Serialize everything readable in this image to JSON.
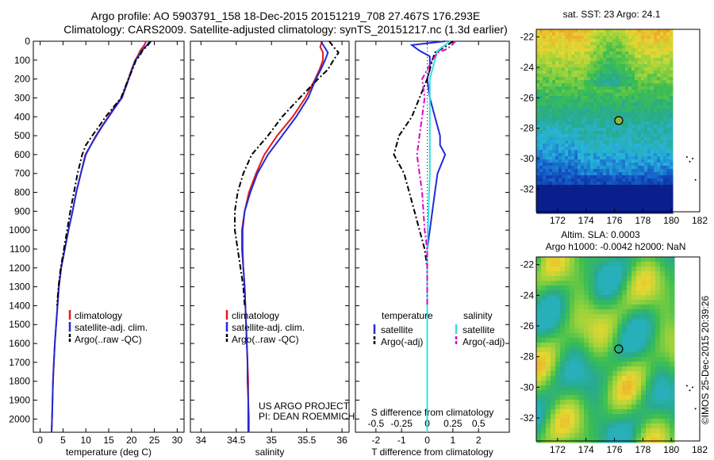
{
  "header": {
    "line1": "Argo profile: AO 5903791_158 18-Dec-2015 20151219_708 27.467S 176.293E",
    "line2": "Climatology: CARS2009. Satellite-adjusted climatology: synTS_20151217.nc (1.3d earlier)"
  },
  "colors": {
    "climatology": "#e41a1c",
    "satellite": "#1f2bd6",
    "argo": "#000000",
    "sal_satellite": "#33e0e0",
    "sal_argo": "#e000c8"
  },
  "chart_data": [
    {
      "type": "line",
      "panel": "temperature",
      "xlabel": "temperature (deg C)",
      "xticks": [
        0,
        5,
        10,
        15,
        20,
        25,
        30
      ],
      "xlim": [
        -1.5,
        31.5
      ],
      "yticks": [
        0,
        100,
        200,
        300,
        400,
        500,
        600,
        700,
        800,
        900,
        1000,
        1100,
        1200,
        1300,
        1400,
        1500,
        1600,
        1700,
        1800,
        1900,
        2000
      ],
      "ylim": [
        2070,
        0
      ],
      "y_inverted": true,
      "legend": {
        "placement": "lower-center",
        "items": [
          "climatology",
          "satellite-adj. clim.",
          "Argo(..raw -QC)"
        ]
      },
      "series": [
        {
          "name": "climatology",
          "style": "solid",
          "color": "#e41a1c",
          "points": [
            [
              23.2,
              0
            ],
            [
              22.8,
              20
            ],
            [
              21.9,
              50
            ],
            [
              21.3,
              80
            ],
            [
              20.8,
              100
            ],
            [
              20.0,
              150
            ],
            [
              19.3,
              200
            ],
            [
              17.8,
              300
            ],
            [
              16.2,
              350
            ],
            [
              14.9,
              400
            ],
            [
              13.5,
              450
            ],
            [
              12.2,
              500
            ],
            [
              11.1,
              550
            ],
            [
              9.9,
              600
            ],
            [
              8.9,
              700
            ],
            [
              7.9,
              800
            ],
            [
              7.1,
              900
            ],
            [
              6.2,
              1000
            ],
            [
              5.4,
              1100
            ],
            [
              4.6,
              1200
            ],
            [
              4.1,
              1300
            ],
            [
              3.8,
              1400
            ],
            [
              3.5,
              1500
            ],
            [
              3.2,
              1600
            ],
            [
              3.0,
              1700
            ],
            [
              2.8,
              1800
            ],
            [
              2.7,
              1900
            ],
            [
              2.6,
              2000
            ],
            [
              2.5,
              2070
            ]
          ]
        },
        {
          "name": "satellite-adj. clim.",
          "style": "solid",
          "color": "#1f2bd6",
          "points": [
            [
              24.0,
              0
            ],
            [
              23.4,
              20
            ],
            [
              22.2,
              50
            ],
            [
              21.5,
              80
            ],
            [
              20.9,
              100
            ],
            [
              20.1,
              150
            ],
            [
              19.4,
              200
            ],
            [
              17.9,
              300
            ],
            [
              16.4,
              350
            ],
            [
              15.0,
              400
            ],
            [
              13.6,
              450
            ],
            [
              12.3,
              500
            ],
            [
              11.1,
              550
            ],
            [
              10.0,
              600
            ],
            [
              8.9,
              700
            ],
            [
              7.9,
              800
            ],
            [
              7.1,
              900
            ],
            [
              6.2,
              1000
            ],
            [
              5.4,
              1100
            ],
            [
              4.6,
              1200
            ],
            [
              4.1,
              1300
            ],
            [
              3.8,
              1400
            ],
            [
              3.5,
              1500
            ],
            [
              3.2,
              1600
            ],
            [
              3.0,
              1700
            ],
            [
              2.8,
              1800
            ],
            [
              2.7,
              1900
            ],
            [
              2.6,
              2000
            ],
            [
              2.5,
              2070
            ]
          ]
        },
        {
          "name": "Argo(..raw -QC)",
          "style": "dash",
          "color": "#000000",
          "points": [
            [
              24.2,
              0
            ],
            [
              23.6,
              20
            ],
            [
              22.4,
              50
            ],
            [
              21.7,
              80
            ],
            [
              21.0,
              100
            ],
            [
              20.2,
              150
            ],
            [
              19.3,
              200
            ],
            [
              17.7,
              300
            ],
            [
              16.0,
              350
            ],
            [
              14.3,
              400
            ],
            [
              12.9,
              450
            ],
            [
              11.4,
              500
            ],
            [
              10.0,
              550
            ],
            [
              9.2,
              600
            ],
            [
              8.2,
              700
            ],
            [
              7.4,
              800
            ],
            [
              6.6,
              900
            ],
            [
              5.9,
              1000
            ],
            [
              5.2,
              1100
            ],
            [
              4.5,
              1200
            ],
            [
              4.0,
              1300
            ],
            [
              3.7,
              1400
            ]
          ]
        }
      ]
    },
    {
      "type": "line",
      "panel": "salinity",
      "xlabel": "salinity",
      "xticks": [
        34,
        34.5,
        35,
        35.5,
        36
      ],
      "xlim": [
        33.85,
        36.1
      ],
      "ylim": [
        2070,
        0
      ],
      "y_inverted": true,
      "legend": {
        "placement": "lower-center",
        "items": [
          "climatology",
          "satellite-adj. clim.",
          "Argo(..raw -QC)"
        ]
      },
      "annotation": [
        "US ARGO PROJECT",
        "PI: DEAN ROEMMICH"
      ],
      "series": [
        {
          "name": "climatology",
          "style": "solid",
          "color": "#e41a1c",
          "points": [
            [
              35.72,
              0
            ],
            [
              35.69,
              30
            ],
            [
              35.73,
              60
            ],
            [
              35.73,
              100
            ],
            [
              35.68,
              150
            ],
            [
              35.62,
              200
            ],
            [
              35.48,
              300
            ],
            [
              35.3,
              400
            ],
            [
              35.08,
              500
            ],
            [
              34.9,
              600
            ],
            [
              34.78,
              700
            ],
            [
              34.68,
              800
            ],
            [
              34.62,
              900
            ],
            [
              34.58,
              1000
            ],
            [
              34.58,
              1100
            ],
            [
              34.6,
              1200
            ],
            [
              34.62,
              1300
            ],
            [
              34.63,
              1400
            ],
            [
              34.64,
              1500
            ],
            [
              34.65,
              1600
            ],
            [
              34.66,
              1700
            ],
            [
              34.67,
              1800
            ],
            [
              34.67,
              1900
            ],
            [
              34.68,
              2000
            ],
            [
              34.68,
              2070
            ]
          ]
        },
        {
          "name": "satellite-adj. clim.",
          "style": "solid",
          "color": "#1f2bd6",
          "points": [
            [
              35.7,
              0
            ],
            [
              35.75,
              30
            ],
            [
              35.8,
              60
            ],
            [
              35.76,
              100
            ],
            [
              35.7,
              150
            ],
            [
              35.63,
              200
            ],
            [
              35.52,
              300
            ],
            [
              35.35,
              400
            ],
            [
              35.15,
              500
            ],
            [
              34.95,
              600
            ],
            [
              34.8,
              700
            ],
            [
              34.7,
              800
            ],
            [
              34.62,
              900
            ],
            [
              34.59,
              1000
            ],
            [
              34.59,
              1100
            ],
            [
              34.6,
              1200
            ],
            [
              34.62,
              1300
            ],
            [
              34.63,
              1400
            ],
            [
              34.64,
              1500
            ],
            [
              34.65,
              1600
            ],
            [
              34.66,
              1700
            ],
            [
              34.66,
              1800
            ],
            [
              34.67,
              1900
            ],
            [
              34.67,
              2000
            ],
            [
              34.67,
              2070
            ]
          ]
        },
        {
          "name": "Argo(..raw -QC)",
          "style": "dash",
          "color": "#000000",
          "points": [
            [
              35.82,
              0
            ],
            [
              35.88,
              30
            ],
            [
              35.95,
              60
            ],
            [
              35.88,
              100
            ],
            [
              35.8,
              150
            ],
            [
              35.66,
              200
            ],
            [
              35.4,
              300
            ],
            [
              35.15,
              400
            ],
            [
              34.95,
              500
            ],
            [
              34.72,
              600
            ],
            [
              34.6,
              700
            ],
            [
              34.52,
              800
            ],
            [
              34.48,
              900
            ],
            [
              34.48,
              1000
            ],
            [
              34.52,
              1100
            ],
            [
              34.56,
              1200
            ],
            [
              34.6,
              1300
            ],
            [
              34.62,
              1400
            ]
          ]
        }
      ]
    },
    {
      "type": "line",
      "panel": "difference",
      "xlabel": "T difference from climatology",
      "xlabel_top": "S difference from climatology",
      "xticks": [
        -2,
        -1,
        0,
        1,
        2
      ],
      "xticks_top": [
        "-0.5",
        "-0.25",
        "0",
        "0.25",
        "0.5"
      ],
      "xlim": [
        -2.8,
        3.2
      ],
      "ylim": [
        2070,
        0
      ],
      "y_inverted": true,
      "legend": {
        "placement": "lower-center",
        "headers": [
          "temperature",
          "salinity"
        ],
        "items": [
          "satellite",
          "Argo(-adj)",
          "satellite",
          "Argo(-adj)"
        ]
      },
      "series": [
        {
          "name": "satellite",
          "group": "temperature",
          "style": "solid",
          "color": "#1f2bd6",
          "points": [
            [
              0.7,
              0
            ],
            [
              -0.6,
              20
            ],
            [
              -0.3,
              50
            ],
            [
              0.1,
              80
            ],
            [
              0.1,
              150
            ],
            [
              0.0,
              200
            ],
            [
              0.1,
              300
            ],
            [
              0.3,
              400
            ],
            [
              0.5,
              500
            ],
            [
              0.5,
              550
            ],
            [
              0.7,
              600
            ],
            [
              0.4,
              700
            ],
            [
              0.3,
              800
            ],
            [
              0.2,
              900
            ],
            [
              0.1,
              1000
            ],
            [
              0.0,
              1100
            ],
            [
              0.0,
              1200
            ],
            [
              0.0,
              1500
            ],
            [
              0.0,
              2070
            ]
          ]
        },
        {
          "name": "Argo(-adj)",
          "group": "temperature",
          "style": "dash",
          "color": "#000000",
          "points": [
            [
              1.0,
              0
            ],
            [
              0.7,
              30
            ],
            [
              0.3,
              60
            ],
            [
              0.2,
              100
            ],
            [
              0.0,
              200
            ],
            [
              -0.3,
              300
            ],
            [
              -0.6,
              400
            ],
            [
              -1.1,
              500
            ],
            [
              -1.3,
              600
            ],
            [
              -0.9,
              700
            ],
            [
              -0.7,
              800
            ],
            [
              -0.5,
              900
            ],
            [
              -0.3,
              1000
            ],
            [
              -0.1,
              1100
            ],
            [
              0.0,
              1200
            ],
            [
              0.0,
              1400
            ]
          ]
        },
        {
          "name": "satellite",
          "group": "salinity",
          "style": "solid",
          "color": "#33e0e0",
          "points": [
            [
              0.9,
              0
            ],
            [
              0.4,
              50
            ],
            [
              0.3,
              100
            ],
            [
              0.1,
              200
            ],
            [
              0.1,
              400
            ],
            [
              0.1,
              600
            ],
            [
              0.1,
              700
            ],
            [
              0.05,
              900
            ],
            [
              0.0,
              1100
            ],
            [
              0.0,
              2070
            ]
          ]
        },
        {
          "name": "Argo(-adj)",
          "group": "salinity",
          "style": "dash",
          "color": "#e000c8",
          "points": [
            [
              1.1,
              0
            ],
            [
              0.8,
              40
            ],
            [
              0.4,
              60
            ],
            [
              0.2,
              100
            ],
            [
              -0.2,
              200
            ],
            [
              -0.1,
              300
            ],
            [
              -0.2,
              400
            ],
            [
              -0.3,
              500
            ],
            [
              -0.4,
              600
            ],
            [
              -0.3,
              700
            ],
            [
              -0.2,
              800
            ],
            [
              -0.1,
              1000
            ],
            [
              0.0,
              1100
            ],
            [
              0.0,
              1400
            ]
          ]
        }
      ]
    },
    {
      "type": "heatmap",
      "panel": "sst-map",
      "title": "sat. SST: 23 Argo: 24.1",
      "xticks": [
        172,
        174,
        176,
        178,
        180,
        182
      ],
      "yticks": [
        -22,
        -24,
        -26,
        -28,
        -30,
        -32
      ],
      "xlim": [
        170.5,
        182
      ],
      "ylim": [
        -33.5,
        -21.5
      ],
      "marker": {
        "lon": 176.3,
        "lat": -27.5
      }
    },
    {
      "type": "heatmap",
      "panel": "sla-map",
      "title": "Altim. SLA: 0.0003",
      "subtitle": "Argo h1000: -0.0042 h2000: NaN",
      "xticks": [
        172,
        174,
        176,
        178,
        180,
        182
      ],
      "yticks": [
        -22,
        -24,
        -26,
        -28,
        -30,
        -32
      ],
      "xlim": [
        170.5,
        182
      ],
      "ylim": [
        -33.5,
        -21.5
      ],
      "marker": {
        "lon": 176.3,
        "lat": -27.5
      }
    }
  ],
  "footer": {
    "timestamp": "©IMOS 25-Dec-2015 20:39:26"
  }
}
